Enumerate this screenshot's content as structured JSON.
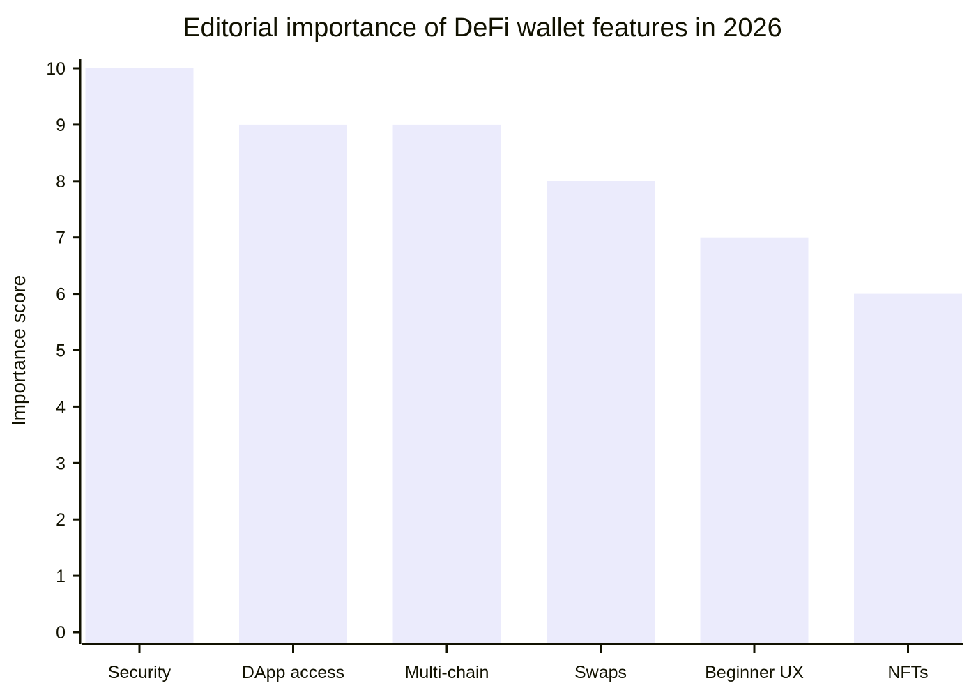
{
  "chart_data": {
    "type": "bar",
    "title": "Editorial importance of DeFi wallet features in 2026",
    "xlabel": "",
    "ylabel": "Importance score",
    "categories": [
      "Security",
      "DApp access",
      "Multi-chain",
      "Swaps",
      "Beginner UX",
      "NFTs"
    ],
    "values": [
      10,
      9,
      9,
      8,
      7,
      6
    ],
    "ylim": [
      0,
      10
    ],
    "yticks": [
      0,
      1,
      2,
      3,
      4,
      5,
      6,
      7,
      8,
      9,
      10
    ],
    "grid": false,
    "legend": "none",
    "colors": {
      "bar": "#ebebfc",
      "axis": "#111100",
      "text": "#111100"
    }
  }
}
